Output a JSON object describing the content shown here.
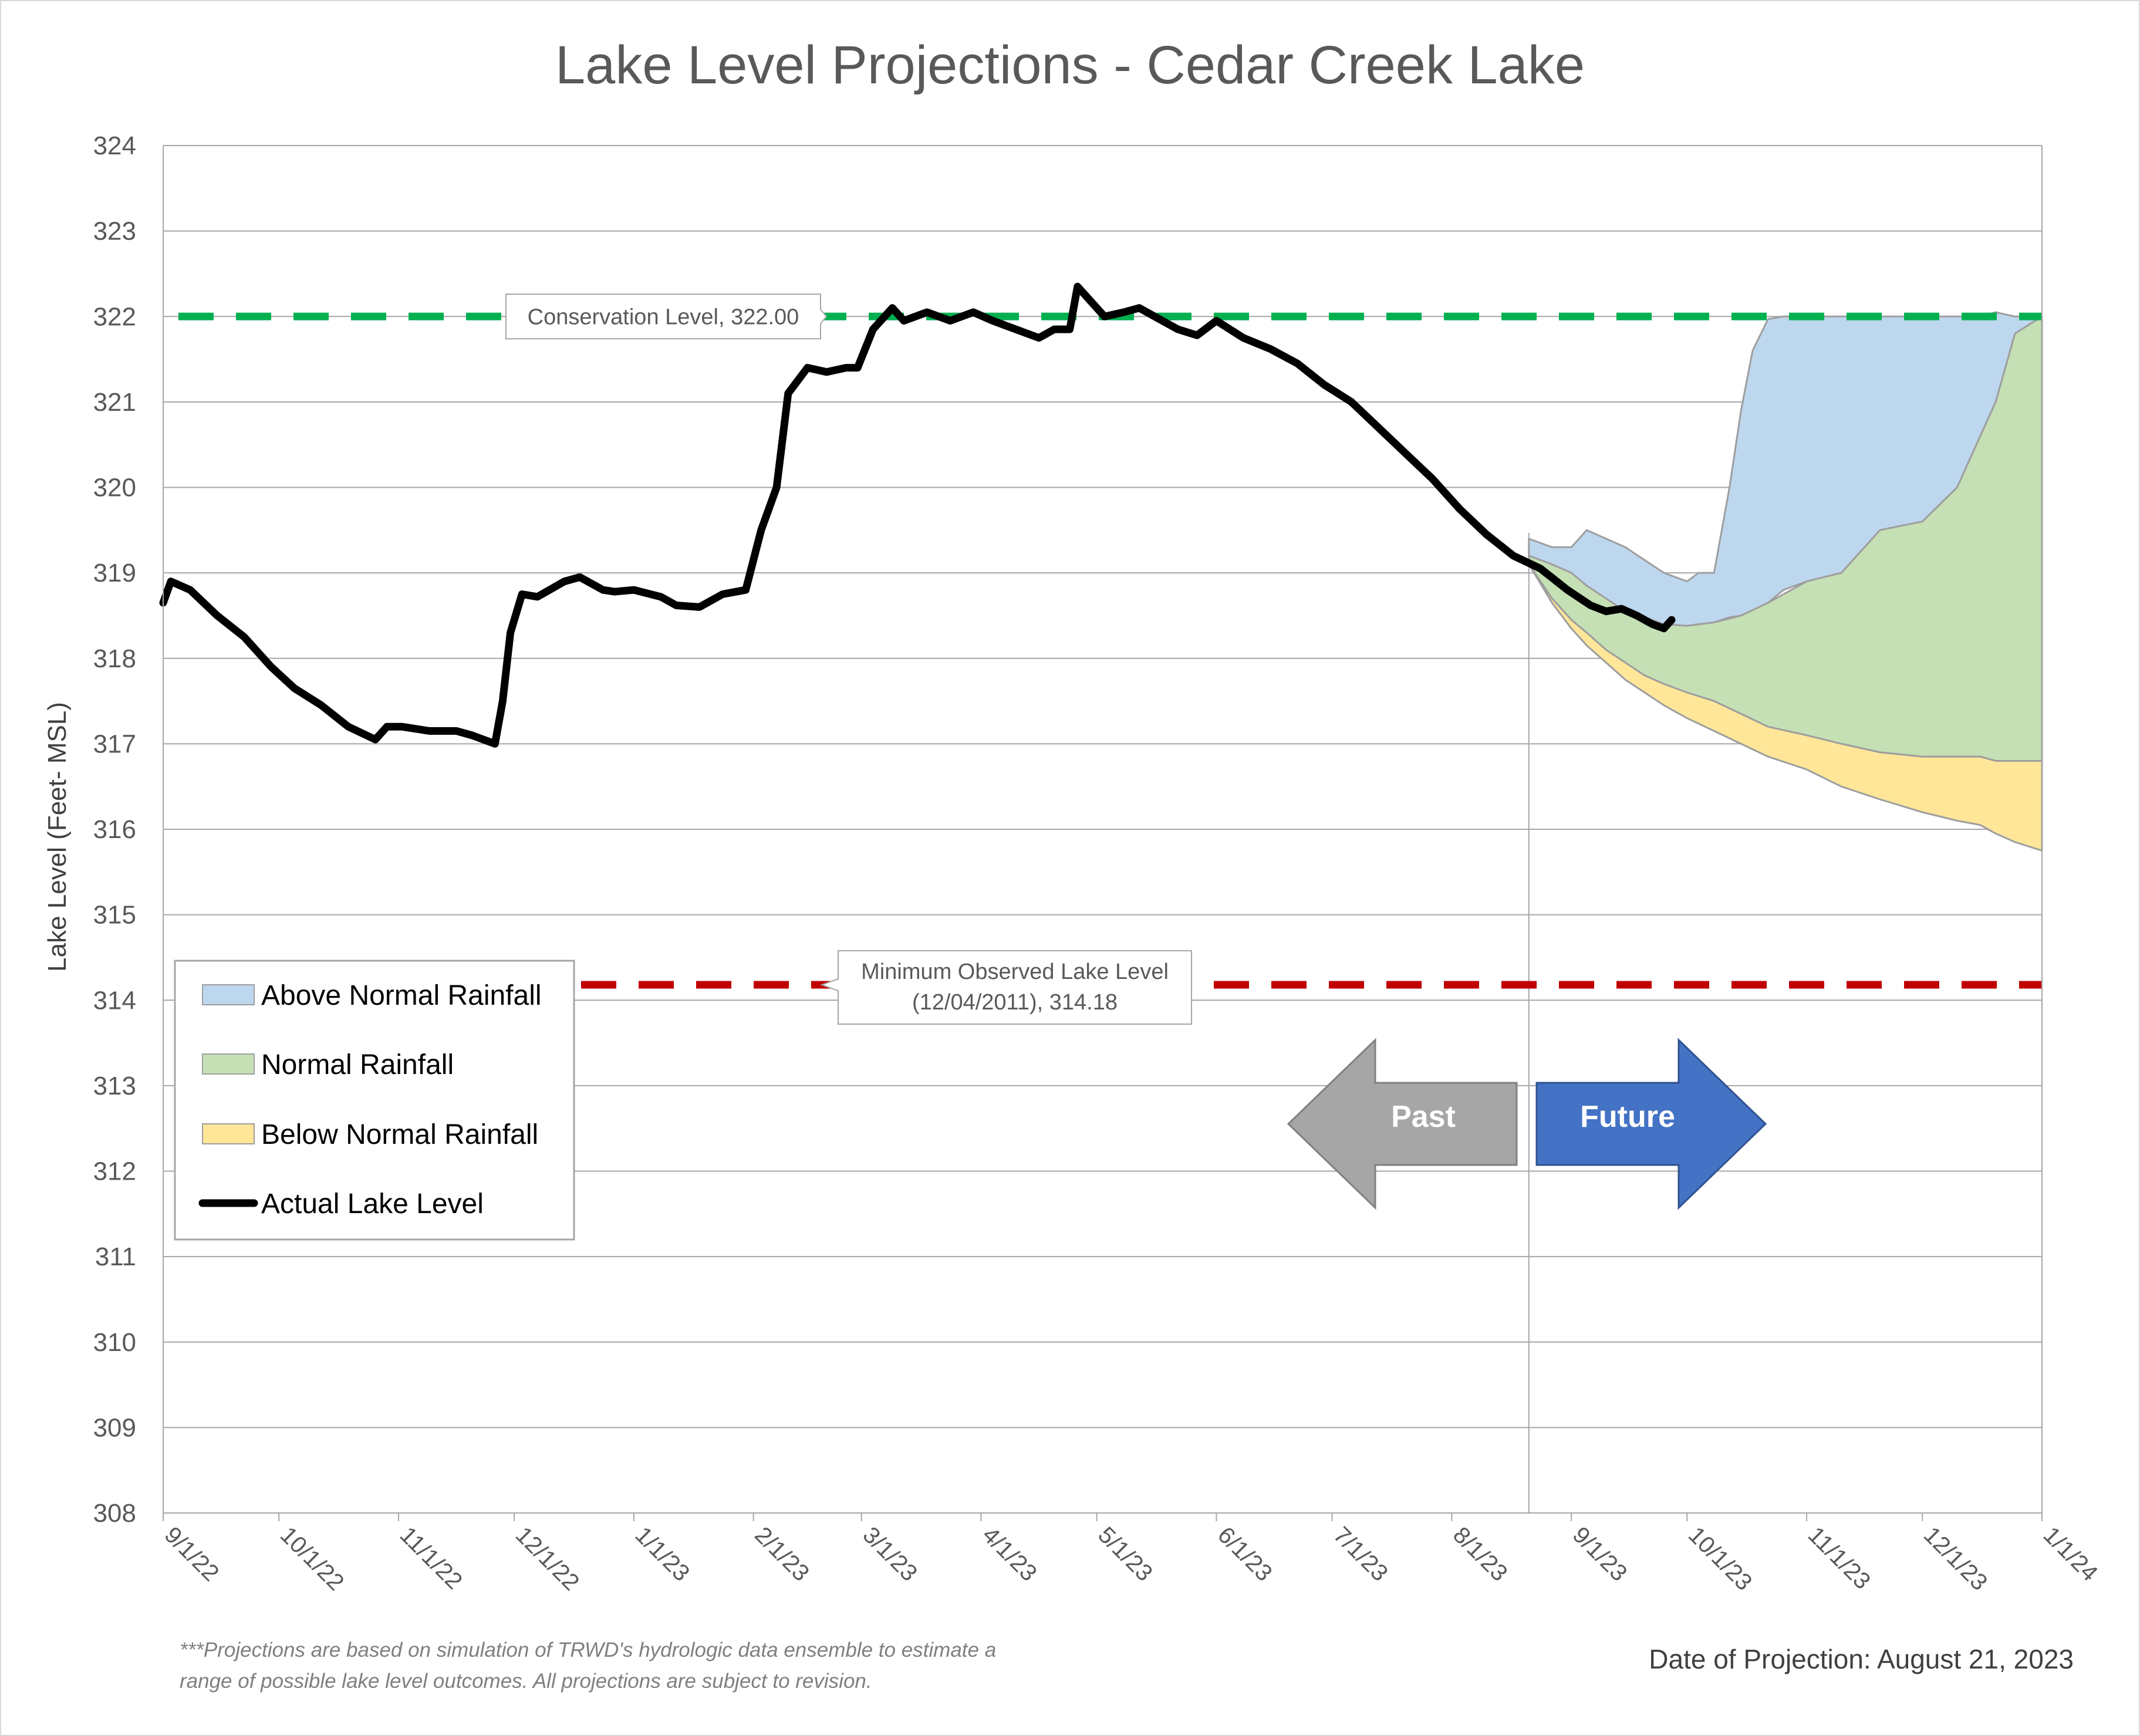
{
  "chart_data": {
    "type": "area",
    "title": "Lake Level Projections - Cedar Creek Lake",
    "ylabel": "Lake Level (Feet- MSL)",
    "xlabel": "",
    "ylim": [
      308,
      324
    ],
    "y_ticks": [
      "308",
      "309",
      "310",
      "311",
      "312",
      "313",
      "314",
      "315",
      "316",
      "317",
      "318",
      "319",
      "320",
      "321",
      "322",
      "323",
      "324"
    ],
    "x_range": [
      "2022-09-01",
      "2024-01-01"
    ],
    "x_ticks": [
      {
        "date": "2022-09-01",
        "label": "9/1/22"
      },
      {
        "date": "2022-10-01",
        "label": "10/1/22"
      },
      {
        "date": "2022-11-01",
        "label": "11/1/22"
      },
      {
        "date": "2022-12-01",
        "label": "12/1/22"
      },
      {
        "date": "2023-01-01",
        "label": "1/1/23"
      },
      {
        "date": "2023-02-01",
        "label": "2/1/23"
      },
      {
        "date": "2023-03-01",
        "label": "3/1/23"
      },
      {
        "date": "2023-04-01",
        "label": "4/1/23"
      },
      {
        "date": "2023-05-01",
        "label": "5/1/23"
      },
      {
        "date": "2023-06-01",
        "label": "6/1/23"
      },
      {
        "date": "2023-07-01",
        "label": "7/1/23"
      },
      {
        "date": "2023-08-01",
        "label": "8/1/23"
      },
      {
        "date": "2023-09-01",
        "label": "9/1/23"
      },
      {
        "date": "2023-10-01",
        "label": "10/1/23"
      },
      {
        "date": "2023-11-01",
        "label": "11/1/23"
      },
      {
        "date": "2023-12-01",
        "label": "12/1/23"
      },
      {
        "date": "2024-01-01",
        "label": "1/1/24"
      }
    ],
    "grid": {
      "horizontal": true,
      "vertical": false
    },
    "legend_position": "lower-left",
    "projection_date": "2023-08-21",
    "reference_lines": [
      {
        "name": "Conservation Level",
        "value": 322.0,
        "color": "#00b050",
        "style": "dashed",
        "label": "Conservation Level, 322.00"
      },
      {
        "name": "Minimum Observed Lake Level",
        "value": 314.18,
        "color": "#c00000",
        "style": "dashed",
        "label_lines": [
          "Minimum Observed Lake Level",
          "(12/04/2011), 314.18"
        ]
      }
    ],
    "series": [
      {
        "name": "Above Normal Rainfall",
        "type": "area",
        "color": "#bdd7ee",
        "x": [
          "2023-08-21",
          "2023-08-27",
          "2023-09-01",
          "2023-09-05",
          "2023-09-10",
          "2023-09-15",
          "2023-09-20",
          "2023-09-25",
          "2023-10-01",
          "2023-10-04",
          "2023-10-08",
          "2023-10-12",
          "2023-10-15",
          "2023-10-18",
          "2023-10-22",
          "2023-10-26",
          "2023-11-01",
          "2023-11-10",
          "2023-11-20",
          "2023-12-01",
          "2023-12-10",
          "2023-12-16",
          "2023-12-20",
          "2023-12-25",
          "2024-01-01"
        ],
        "upper": [
          319.4,
          319.3,
          319.3,
          319.5,
          319.4,
          319.3,
          319.15,
          319.0,
          318.9,
          319.0,
          319.0,
          320.0,
          320.9,
          321.6,
          321.97,
          322.0,
          322.0,
          322.0,
          322.0,
          322.0,
          322.0,
          322.0,
          322.05,
          322.0,
          322.0
        ],
        "lower": [
          319.2,
          319.1,
          319.0,
          318.85,
          318.7,
          318.55,
          318.48,
          318.4,
          318.38,
          318.4,
          318.42,
          318.48,
          318.5,
          318.55,
          318.65,
          318.8,
          318.9,
          319.0,
          319.5,
          319.6,
          320.0,
          320.6,
          321.0,
          321.8,
          322.0
        ]
      },
      {
        "name": "Normal Rainfall",
        "type": "area",
        "color": "#c5e0b4",
        "x": [
          "2023-08-21",
          "2023-08-27",
          "2023-09-01",
          "2023-09-05",
          "2023-09-10",
          "2023-09-15",
          "2023-09-20",
          "2023-09-25",
          "2023-10-01",
          "2023-10-08",
          "2023-10-15",
          "2023-10-22",
          "2023-11-01",
          "2023-11-10",
          "2023-11-20",
          "2023-12-01",
          "2023-12-10",
          "2023-12-16",
          "2023-12-20",
          "2023-12-25",
          "2024-01-01"
        ],
        "upper": [
          319.2,
          319.1,
          319.0,
          318.85,
          318.7,
          318.55,
          318.48,
          318.4,
          318.38,
          318.42,
          318.5,
          318.65,
          318.9,
          319.0,
          319.5,
          319.6,
          320.0,
          320.6,
          321.0,
          321.8,
          322.0
        ],
        "lower": [
          319.1,
          318.7,
          318.45,
          318.3,
          318.1,
          317.95,
          317.8,
          317.7,
          317.6,
          317.5,
          317.35,
          317.2,
          317.1,
          317.0,
          316.9,
          316.85,
          316.85,
          316.85,
          316.8,
          316.8,
          316.8
        ]
      },
      {
        "name": "Below Normal Rainfall",
        "type": "area",
        "color": "#ffe699",
        "x": [
          "2023-08-21",
          "2023-08-27",
          "2023-09-01",
          "2023-09-05",
          "2023-09-10",
          "2023-09-15",
          "2023-09-20",
          "2023-09-25",
          "2023-10-01",
          "2023-10-08",
          "2023-10-15",
          "2023-10-22",
          "2023-11-01",
          "2023-11-10",
          "2023-11-20",
          "2023-12-01",
          "2023-12-10",
          "2023-12-16",
          "2023-12-20",
          "2023-12-25",
          "2024-01-01"
        ],
        "upper": [
          319.1,
          318.7,
          318.45,
          318.3,
          318.1,
          317.95,
          317.8,
          317.7,
          317.6,
          317.5,
          317.35,
          317.2,
          317.1,
          317.0,
          316.9,
          316.85,
          316.85,
          316.85,
          316.8,
          316.8,
          316.8
        ],
        "lower": [
          319.1,
          318.65,
          318.35,
          318.15,
          317.95,
          317.75,
          317.6,
          317.45,
          317.3,
          317.15,
          317.0,
          316.85,
          316.7,
          316.5,
          316.35,
          316.2,
          316.1,
          316.05,
          315.95,
          315.85,
          315.75
        ]
      },
      {
        "name": "Actual Lake Level",
        "type": "line",
        "color": "#000000",
        "x": [
          "2022-09-01",
          "2022-09-03",
          "2022-09-08",
          "2022-09-15",
          "2022-09-22",
          "2022-09-29",
          "2022-10-05",
          "2022-10-12",
          "2022-10-19",
          "2022-10-26",
          "2022-10-29",
          "2022-11-02",
          "2022-11-09",
          "2022-11-16",
          "2022-11-20",
          "2022-11-26",
          "2022-11-28",
          "2022-11-30",
          "2022-12-03",
          "2022-12-07",
          "2022-12-14",
          "2022-12-18",
          "2022-12-24",
          "2022-12-27",
          "2023-01-01",
          "2023-01-08",
          "2023-01-12",
          "2023-01-18",
          "2023-01-24",
          "2023-01-30",
          "2023-02-03",
          "2023-02-07",
          "2023-02-10",
          "2023-02-15",
          "2023-02-20",
          "2023-02-25",
          "2023-02-28",
          "2023-03-04",
          "2023-03-09",
          "2023-03-12",
          "2023-03-18",
          "2023-03-24",
          "2023-03-30",
          "2023-04-04",
          "2023-04-10",
          "2023-04-16",
          "2023-04-20",
          "2023-04-24",
          "2023-04-26",
          "2023-04-29",
          "2023-05-03",
          "2023-05-08",
          "2023-05-12",
          "2023-05-16",
          "2023-05-22",
          "2023-05-27",
          "2023-06-01",
          "2023-06-08",
          "2023-06-15",
          "2023-06-22",
          "2023-06-29",
          "2023-07-06",
          "2023-07-13",
          "2023-07-20",
          "2023-07-27",
          "2023-08-03",
          "2023-08-10",
          "2023-08-17",
          "2023-08-24",
          "2023-08-31",
          "2023-09-06",
          "2023-09-10",
          "2023-09-14",
          "2023-09-18",
          "2023-09-22",
          "2023-09-25",
          "2023-09-27"
        ],
        "values": [
          318.65,
          318.9,
          318.8,
          318.5,
          318.25,
          317.9,
          317.65,
          317.45,
          317.2,
          317.05,
          317.2,
          317.2,
          317.15,
          317.15,
          317.1,
          317.0,
          317.5,
          318.3,
          318.75,
          318.72,
          318.9,
          318.95,
          318.8,
          318.78,
          318.8,
          318.72,
          318.62,
          318.6,
          318.75,
          318.8,
          319.5,
          320.0,
          321.1,
          321.4,
          321.35,
          321.4,
          321.4,
          321.85,
          322.1,
          321.95,
          322.05,
          321.95,
          322.05,
          321.95,
          321.85,
          321.75,
          321.85,
          321.85,
          322.35,
          322.2,
          322.0,
          322.05,
          322.1,
          322.0,
          321.85,
          321.78,
          321.95,
          321.75,
          321.62,
          321.45,
          321.2,
          321.0,
          320.7,
          320.4,
          320.1,
          319.75,
          319.45,
          319.2,
          319.05,
          318.8,
          318.62,
          318.55,
          318.58,
          318.5,
          318.4,
          318.35,
          318.45
        ]
      }
    ],
    "annotations": {
      "past_label": "Past",
      "future_label": "Future",
      "footnote_lines": [
        "***Projections are based on simulation of TRWD's hydrologic data ensemble to estimate a",
        "range of possible lake level outcomes.  All projections are subject to revision."
      ],
      "projection_date_text": "Date of Projection: August 21, 2023"
    }
  }
}
